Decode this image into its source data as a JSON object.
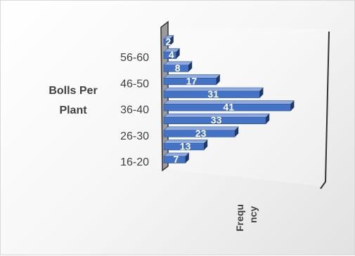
{
  "chart_data": {
    "type": "bar",
    "orientation": "horizontal",
    "ylabel_lines": [
      "Bolls Per",
      "Plant"
    ],
    "xlabel_lines": [
      "Frequ",
      "ncy"
    ],
    "category_labels": [
      {
        "label": "16-20",
        "bar_index": 0
      },
      {
        "label": "26-30",
        "bar_index": 2
      },
      {
        "label": "36-40",
        "bar_index": 4
      },
      {
        "label": "46-50",
        "bar_index": 6
      },
      {
        "label": "56-60",
        "bar_index": 8
      }
    ],
    "values": [
      7,
      13,
      23,
      33,
      41,
      31,
      17,
      8,
      4,
      2
    ],
    "xlim": [
      0,
      45
    ],
    "grid": false,
    "legend": "none",
    "colors": {
      "bar_front": "#4472c4",
      "bar_top": "#8faadc",
      "bar_side": "#203864",
      "bar_border": "#2f5597",
      "axis": "#333333",
      "text": "#404040",
      "label_text": "#ffffff"
    }
  }
}
